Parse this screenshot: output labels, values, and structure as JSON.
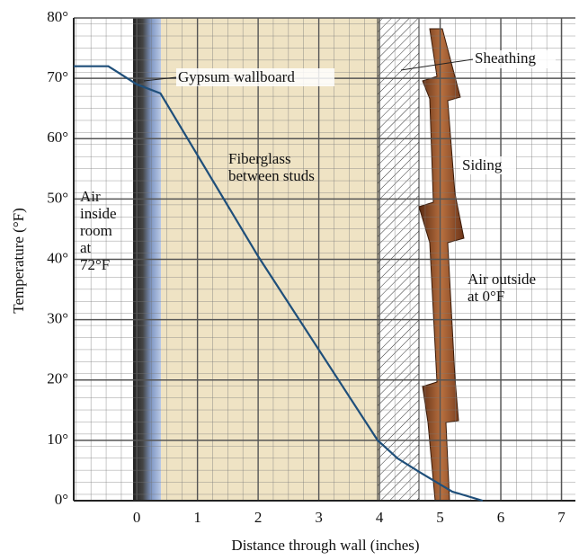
{
  "chart_data": {
    "type": "line",
    "x_label": "Distance through wall (inches)",
    "y_label": "Temperature (°F)",
    "xlim": [
      -1.04,
      7.23
    ],
    "ylim": [
      0,
      80
    ],
    "xticks": [
      0,
      1,
      2,
      3,
      4,
      5,
      6,
      7
    ],
    "yticks": [
      {
        "value": 0,
        "label": "0°"
      },
      {
        "value": 10,
        "label": "10°"
      },
      {
        "value": 20,
        "label": "20°"
      },
      {
        "value": 30,
        "label": "30°"
      },
      {
        "value": 40,
        "label": "40°"
      },
      {
        "value": 50,
        "label": "50°"
      },
      {
        "value": 60,
        "label": "60°"
      },
      {
        "value": 70,
        "label": "70°"
      },
      {
        "value": 80,
        "label": "80°"
      }
    ],
    "grid": true,
    "series": [
      {
        "color": "#1f4f7a",
        "x": [
          -1.04,
          -0.47,
          0,
          0.39,
          2,
          3.97,
          4.3,
          4.7,
          5.2,
          5.7
        ],
        "values": [
          72,
          72,
          69,
          67.5,
          40.5,
          10,
          7,
          4.5,
          1.5,
          0
        ]
      }
    ],
    "annotations": {
      "gypsum": "Gypsum wallboard",
      "sheathing": "Sheathing",
      "fiberglass": [
        "Fiberglass",
        "between studs"
      ],
      "siding": "Siding",
      "inside": [
        "Air",
        "inside",
        "room",
        "at",
        "72°F"
      ],
      "outside": [
        "Air outside",
        "at 0°F"
      ]
    }
  }
}
